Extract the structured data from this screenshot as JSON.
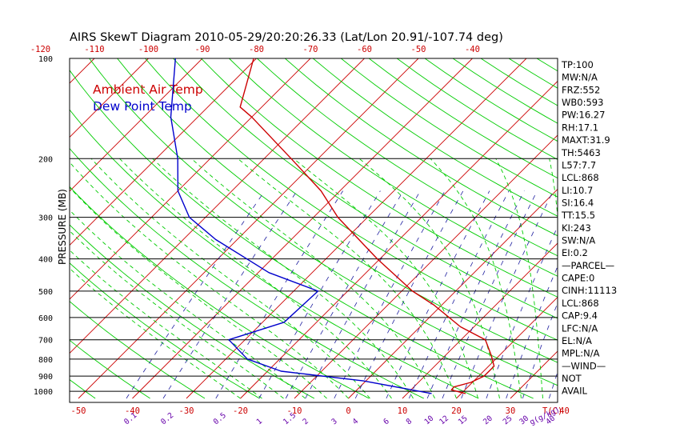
{
  "chart_data": {
    "type": "line",
    "title": "AIRS SkewT Diagram 2010-05-29/20:20:26.33 (Lat/Lon 20.91/-107.74 deg)",
    "ylabel": "PRESSURE (MB)",
    "xlabel": "T(C)",
    "mixing_ratio_unit": "g(g/kg)",
    "y_scale": "log",
    "ylim": [
      1050,
      100
    ],
    "xlim_bottom": [
      -53,
      50
    ],
    "pressure_ticks": [
      100,
      200,
      300,
      400,
      500,
      600,
      700,
      800,
      900,
      1000
    ],
    "bottom_temp_ticks": [
      "-50",
      "-40",
      "-30",
      "-20",
      "-10",
      "0",
      "10",
      "20",
      "30",
      "40"
    ],
    "top_temp_ticks": [
      "-120",
      "-110",
      "-100",
      "-90",
      "-80",
      "-70",
      "-60",
      "-50",
      "-40"
    ],
    "mixing_ratio_labels": [
      "0.1",
      "0.2",
      "0.5",
      "1",
      "1.5",
      "2",
      "3",
      "4",
      "6",
      "8",
      "10",
      "12",
      "15",
      "20",
      "25",
      "30",
      "40"
    ],
    "legend": [
      {
        "name": "Ambient Air Temp",
        "color": "#cc0000"
      },
      {
        "name": "Dew Point Temp",
        "color": "#0000cc"
      }
    ],
    "series": [
      {
        "name": "Ambient Air Temp",
        "color": "#cc0000",
        "points": [
          {
            "p": 1015,
            "t": 20.8
          },
          {
            "p": 990,
            "t": 17.5
          },
          {
            "p": 970,
            "t": 17.4
          },
          {
            "p": 940,
            "t": 19.7
          },
          {
            "p": 900,
            "t": 21.0
          },
          {
            "p": 840,
            "t": 21.0
          },
          {
            "p": 780,
            "t": 18.5
          },
          {
            "p": 700,
            "t": 14.5
          },
          {
            "p": 640,
            "t": 7.5
          },
          {
            "p": 550,
            "t": -1.5
          },
          {
            "p": 500,
            "t": -8.0
          },
          {
            "p": 400,
            "t": -20.5
          },
          {
            "p": 300,
            "t": -35.5
          },
          {
            "p": 250,
            "t": -43.5
          },
          {
            "p": 200,
            "t": -55.0
          },
          {
            "p": 150,
            "t": -70.0
          },
          {
            "p": 140,
            "t": -74.0
          },
          {
            "p": 100,
            "t": -80.5
          }
        ]
      },
      {
        "name": "Dew Point Temp",
        "color": "#0000cc",
        "points": [
          {
            "p": 1015,
            "t": 14.5
          },
          {
            "p": 930,
            "t": -0.5
          },
          {
            "p": 870,
            "t": -17.5
          },
          {
            "p": 800,
            "t": -26.0
          },
          {
            "p": 700,
            "t": -33.0
          },
          {
            "p": 620,
            "t": -26.0
          },
          {
            "p": 500,
            "t": -25.5
          },
          {
            "p": 440,
            "t": -38.0
          },
          {
            "p": 350,
            "t": -54.0
          },
          {
            "p": 300,
            "t": -63.0
          },
          {
            "p": 250,
            "t": -70.0
          },
          {
            "p": 200,
            "t": -76.0
          },
          {
            "p": 150,
            "t": -85.0
          },
          {
            "p": 100,
            "t": -95.0
          }
        ]
      }
    ],
    "indices": [
      "TP:100",
      "MW:N/A",
      "FRZ:552",
      "WB0:593",
      "PW:16.27",
      "RH:17.1",
      "MAXT:31.9",
      "TH:5463",
      "L57:7.7",
      "LCL:868",
      "LI:10.7",
      "SI:16.4",
      "TT:15.5",
      "KI:243",
      "SW:N/A",
      "EI:0.2",
      "—PARCEL—",
      "CAPE:0",
      "CINH:11113",
      "LCL:868",
      "CAP:9.4",
      "LFC:N/A",
      "EL:N/A",
      "MPL:N/A",
      "—WIND—",
      "NOT",
      "AVAIL"
    ],
    "colors": {
      "isotherm": "#cc0000",
      "adiabat": "#00cc00",
      "mixing_ratio": "#2020a0",
      "isobar": "#000000",
      "label_red": "#cc0000",
      "label_purple": "#6600aa"
    },
    "grid": true
  }
}
